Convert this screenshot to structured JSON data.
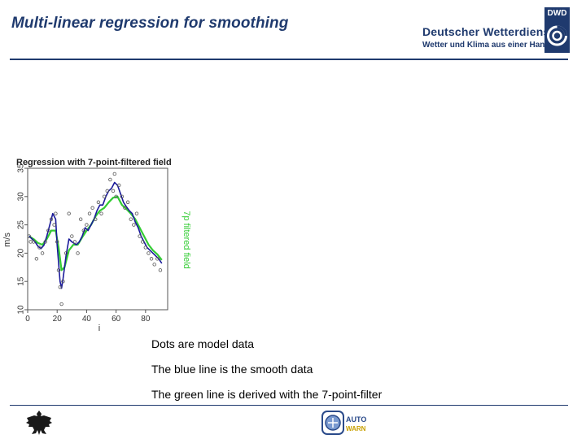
{
  "slide": {
    "title": "Multi-linear regression for smoothing",
    "captions": [
      "Dots are model data",
      "The blue line is the smooth data",
      "The green line is derived with the 7-point-filter"
    ]
  },
  "branding": {
    "org_name": "Deutscher Wetterdienst",
    "slogan": "Wetter und Klima aus einer Hand",
    "logo_label": "DWD",
    "footer_logo_text": "AUTO WARN",
    "colors": {
      "brand_blue": "#1f3a6e"
    }
  },
  "chart_data": {
    "type": "line",
    "title": "Regression with 7-point-filtered field",
    "xlabel": "i",
    "ylabel": "m/s",
    "ylabel_right": "7p filtered field",
    "xlim": [
      0,
      95
    ],
    "ylim": [
      10,
      35
    ],
    "xticks": [
      0,
      20,
      40,
      60,
      80
    ],
    "yticks": [
      10,
      15,
      20,
      25,
      30,
      35
    ],
    "grid": false,
    "colors": {
      "points": "#555555",
      "blue": "#1a1a9a",
      "green": "#33cc33",
      "right_label": "#33cc33"
    },
    "series": [
      {
        "style": "points",
        "x": [
          1,
          2,
          4,
          6,
          8,
          10,
          12,
          14,
          16,
          18,
          19,
          20,
          21,
          22,
          23,
          24,
          26,
          28,
          30,
          32,
          34,
          36,
          38,
          40,
          42,
          44,
          46,
          48,
          50,
          52,
          54,
          56,
          58,
          59,
          60,
          62,
          64,
          66,
          68,
          70,
          72,
          74,
          76,
          78,
          80,
          82,
          84,
          86,
          88,
          90
        ],
        "y": [
          23,
          22,
          22,
          19,
          21,
          20,
          22,
          24,
          26,
          25,
          27,
          22,
          17,
          14,
          11,
          15,
          20,
          27,
          23,
          22,
          20,
          26,
          24,
          25,
          27,
          28,
          26,
          29,
          27,
          30,
          31,
          33,
          31,
          34,
          30,
          32,
          30,
          28,
          29,
          26,
          25,
          27,
          23,
          22,
          21,
          20,
          19,
          18,
          19,
          17
        ]
      },
      {
        "name": "",
        "style": "line",
        "x": [
          1,
          3,
          5,
          7,
          9,
          11,
          13,
          15,
          17,
          19,
          20,
          22,
          23,
          24,
          26,
          28,
          30,
          33,
          35,
          37,
          39,
          41,
          43,
          45,
          47,
          49,
          51,
          53,
          55,
          57,
          59,
          61,
          63,
          65,
          67,
          69,
          71,
          73,
          75,
          77,
          79,
          81,
          83,
          85,
          87,
          89,
          91
        ],
        "y": [
          23,
          22.5,
          22,
          21.2,
          20.8,
          21.4,
          23,
          25,
          27,
          26,
          21.5,
          15,
          13.8,
          15.5,
          19.5,
          22.5,
          22,
          21.5,
          22,
          23,
          24.5,
          24,
          25,
          26,
          27.5,
          28.5,
          28.5,
          30,
          31,
          31.5,
          32.5,
          32,
          30.5,
          29,
          28.2,
          27.5,
          27,
          25.5,
          24.5,
          23,
          22,
          21,
          20.5,
          20,
          19.5,
          19,
          18.2
        ]
      },
      {
        "name": "",
        "style": "line",
        "x": [
          1,
          4,
          7,
          10,
          13,
          16,
          19,
          21,
          23,
          25,
          28,
          31,
          34,
          37,
          40,
          43,
          46,
          49,
          52,
          55,
          58,
          61,
          64,
          67,
          70,
          73,
          76,
          79,
          82,
          85,
          88,
          91
        ],
        "y": [
          23,
          22.5,
          21.8,
          21.5,
          22.5,
          24,
          24,
          21,
          17,
          17.5,
          20.5,
          21.5,
          21.5,
          22.8,
          24,
          25,
          26.5,
          27.5,
          28,
          29,
          29.8,
          30,
          28.5,
          27.8,
          27,
          26,
          24.5,
          23,
          21.5,
          20.5,
          19.8,
          18.8
        ]
      }
    ]
  }
}
